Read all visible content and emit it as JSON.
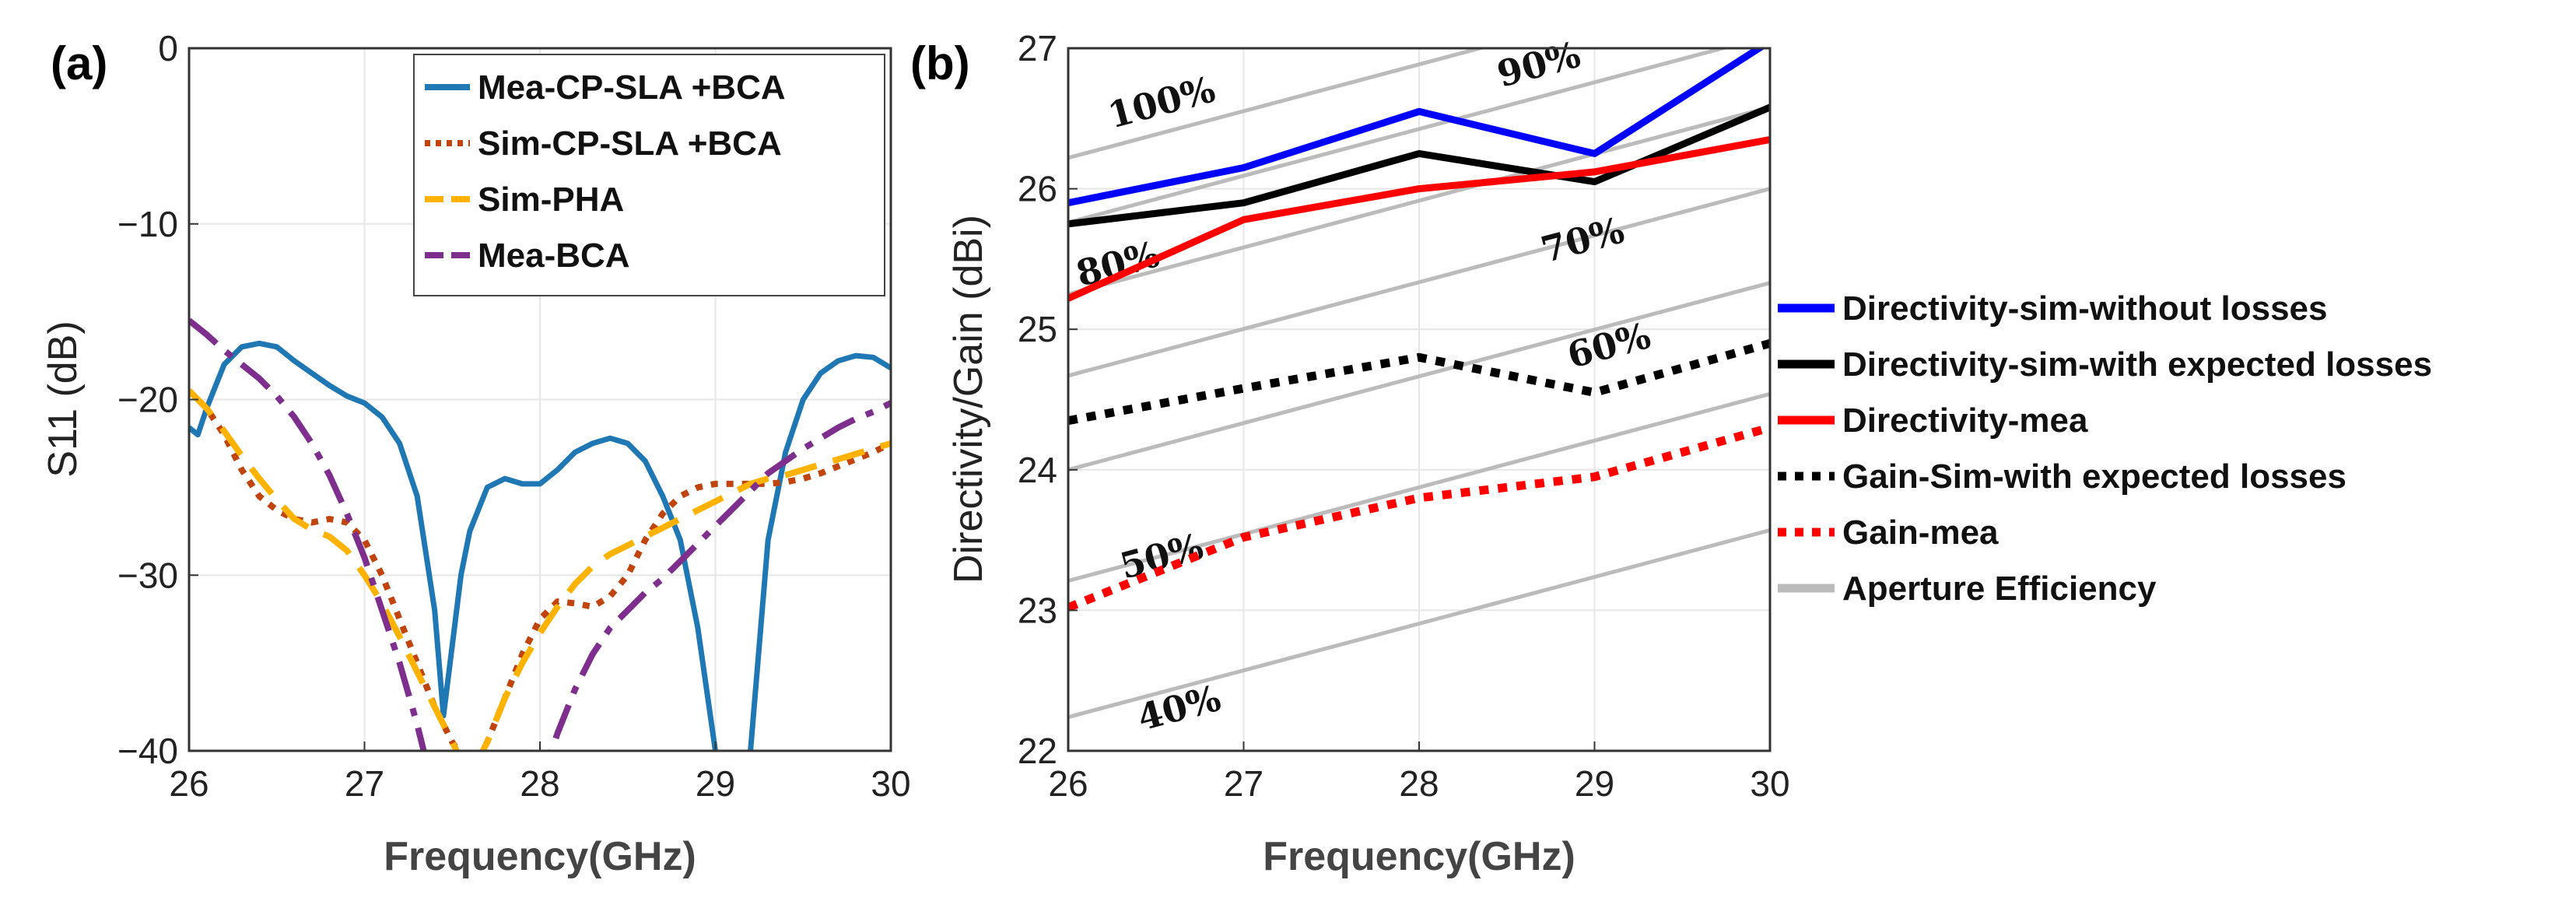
{
  "chart_data": [
    {
      "panel": "(a)",
      "type": "line",
      "xlabel": "Frequency(GHz)",
      "ylabel": "S11 (dB)",
      "xlim": [
        26,
        30
      ],
      "ylim": [
        -40,
        0
      ],
      "xticks": [
        "26",
        "27",
        "28",
        "29",
        "30"
      ],
      "yticks": [
        "−40",
        "−30",
        "−20",
        "−10",
        "0"
      ],
      "grid": true,
      "legend_position": "top-right",
      "series": [
        {
          "name": "Mea-CP-SLA +BCA",
          "color": "#1f77b4",
          "dash": "solid",
          "x": [
            26.0,
            26.05,
            26.1,
            26.2,
            26.3,
            26.4,
            26.5,
            26.6,
            26.7,
            26.8,
            26.9,
            27.0,
            27.1,
            27.2,
            27.3,
            27.4,
            27.45,
            27.5,
            27.55,
            27.6,
            27.7,
            27.8,
            27.9,
            28.0,
            28.1,
            28.2,
            28.3,
            28.4,
            28.5,
            28.6,
            28.7,
            28.8,
            28.9,
            29.0,
            29.05,
            29.2,
            29.25,
            29.3,
            29.4,
            29.5,
            29.6,
            29.7,
            29.8,
            29.9,
            30.0
          ],
          "y": [
            -21.6,
            -22.0,
            -20.5,
            -18.0,
            -17.0,
            -16.8,
            -17.0,
            -17.8,
            -18.5,
            -19.2,
            -19.8,
            -20.2,
            -21.0,
            -22.5,
            -25.5,
            -32.0,
            -38.0,
            -34.0,
            -30.0,
            -27.5,
            -25.0,
            -24.5,
            -24.8,
            -24.8,
            -24.0,
            -23.0,
            -22.5,
            -22.2,
            -22.5,
            -23.5,
            -25.5,
            -28.0,
            -33.0,
            -40.0,
            -43.0,
            -40.0,
            -34.0,
            -28.0,
            -23.0,
            -20.0,
            -18.5,
            -17.8,
            -17.5,
            -17.6,
            -18.2
          ]
        },
        {
          "name": "Sim-CP-SLA +BCA",
          "color": "#c1440e",
          "dash": "dot",
          "x": [
            26.0,
            26.1,
            26.2,
            26.3,
            26.4,
            26.5,
            26.6,
            26.7,
            26.8,
            26.9,
            27.0,
            27.1,
            27.2,
            27.3,
            27.4,
            27.5,
            27.6,
            27.7,
            27.8,
            27.9,
            28.0,
            28.1,
            28.2,
            28.3,
            28.4,
            28.5,
            28.6,
            28.7,
            28.8,
            28.9,
            29.0,
            29.1,
            29.2,
            29.3,
            29.4,
            29.5,
            29.6,
            29.7,
            29.8,
            29.9,
            30.0
          ],
          "y": [
            -19.5,
            -20.5,
            -22.0,
            -24.0,
            -25.5,
            -26.3,
            -26.8,
            -27.0,
            -26.8,
            -27.0,
            -28.0,
            -30.0,
            -32.5,
            -35.0,
            -37.5,
            -39.5,
            -41.0,
            -39.5,
            -37.0,
            -34.5,
            -32.5,
            -31.5,
            -31.6,
            -31.8,
            -31.2,
            -30.0,
            -28.0,
            -26.5,
            -25.5,
            -25.0,
            -24.8,
            -24.8,
            -24.8,
            -24.8,
            -24.7,
            -24.5,
            -24.2,
            -23.8,
            -23.4,
            -23.0,
            -22.5
          ]
        },
        {
          "name": "Sim-PHA",
          "color": "#ffb300",
          "dash": "dash",
          "x": [
            26.0,
            26.1,
            26.2,
            26.3,
            26.4,
            26.5,
            26.6,
            26.7,
            26.8,
            26.9,
            27.0,
            27.1,
            27.2,
            27.3,
            27.4,
            27.5,
            27.6,
            27.7,
            27.8,
            27.9,
            28.0,
            28.1,
            28.2,
            28.3,
            28.4,
            28.5,
            28.6,
            28.7,
            28.8,
            28.9,
            29.0,
            29.1,
            29.2,
            29.3,
            29.4,
            29.5,
            29.6,
            29.7,
            29.8,
            29.9,
            30.0
          ],
          "y": [
            -19.5,
            -20.5,
            -21.8,
            -23.2,
            -24.5,
            -25.7,
            -26.8,
            -27.4,
            -27.8,
            -28.6,
            -30.0,
            -31.6,
            -33.5,
            -35.5,
            -37.5,
            -39.5,
            -41.5,
            -39.5,
            -37.0,
            -35.0,
            -33.3,
            -31.8,
            -30.5,
            -29.5,
            -28.8,
            -28.3,
            -27.8,
            -27.3,
            -26.8,
            -26.3,
            -25.8,
            -25.3,
            -24.8,
            -24.5,
            -24.3,
            -24.0,
            -23.7,
            -23.4,
            -23.1,
            -22.8,
            -22.5
          ]
        },
        {
          "name": "Mea-BCA",
          "color": "#7e2f8e",
          "dash": "dashdot",
          "x": [
            26.0,
            26.1,
            26.2,
            26.3,
            26.4,
            26.5,
            26.6,
            26.7,
            26.8,
            26.9,
            27.0,
            27.1,
            27.2,
            27.3,
            27.35,
            27.4,
            27.45,
            28.0,
            28.05,
            28.1,
            28.2,
            28.3,
            28.4,
            28.5,
            28.6,
            28.7,
            28.8,
            28.9,
            29.0,
            29.1,
            29.2,
            29.3,
            29.4,
            29.5,
            29.6,
            29.7,
            29.8,
            29.9,
            30.0
          ],
          "y": [
            -15.5,
            -16.3,
            -17.2,
            -18.0,
            -18.8,
            -19.8,
            -21.0,
            -22.5,
            -24.3,
            -26.5,
            -29.0,
            -32.0,
            -35.0,
            -38.5,
            -40.5,
            -43.0,
            -45.0,
            -42.0,
            -40.5,
            -39.0,
            -36.5,
            -34.5,
            -33.0,
            -32.0,
            -31.0,
            -30.2,
            -29.2,
            -28.2,
            -27.2,
            -26.2,
            -25.2,
            -24.2,
            -23.5,
            -22.8,
            -22.2,
            -21.6,
            -21.1,
            -20.7,
            -20.2
          ]
        }
      ]
    },
    {
      "panel": "(b)",
      "type": "line",
      "xlabel": "Frequency(GHz)",
      "ylabel": "Directivity/Gain (dBi)",
      "xlim": [
        26,
        30
      ],
      "ylim": [
        22,
        27
      ],
      "xticks": [
        "26",
        "27",
        "28",
        "29",
        "30"
      ],
      "yticks": [
        "22",
        "23",
        "24",
        "25",
        "26",
        "27"
      ],
      "grid": true,
      "legend_position": "outside-right",
      "series": [
        {
          "name": "Directivity-sim-without losses",
          "color": "#0000ff",
          "dash": "solid",
          "x": [
            26,
            27,
            28,
            29,
            30
          ],
          "y": [
            25.9,
            26.15,
            26.55,
            26.25,
            27.05
          ]
        },
        {
          "name": "Directivity-sim-with expected losses",
          "color": "#000000",
          "dash": "solid",
          "x": [
            26,
            27,
            28,
            29,
            30
          ],
          "y": [
            25.75,
            25.9,
            26.25,
            26.05,
            26.58
          ]
        },
        {
          "name": "Directivity-mea",
          "color": "#ff0000",
          "dash": "solid",
          "x": [
            26,
            27,
            28,
            29,
            30
          ],
          "y": [
            25.22,
            25.78,
            26.0,
            26.12,
            26.35
          ]
        },
        {
          "name": "Gain-Sim-with expected losses",
          "color": "#000000",
          "dash": "dot",
          "x": [
            26,
            27,
            28,
            29,
            30
          ],
          "y": [
            24.35,
            24.58,
            24.8,
            24.55,
            24.9
          ]
        },
        {
          "name": "Gain-mea",
          "color": "#ff0000",
          "dash": "dot",
          "x": [
            26,
            27,
            28,
            29,
            30
          ],
          "y": [
            23.02,
            23.52,
            23.8,
            23.95,
            24.3
          ]
        },
        {
          "name": "Aperture Efficiency",
          "color": "#bbbbbb",
          "dash": "solid",
          "x": [],
          "y": []
        }
      ],
      "efficiency_lines": {
        "color": "#bbbbbb",
        "lines": [
          {
            "label": "100%",
            "x": [
              26,
              30
            ],
            "y": [
              26.22,
              27.55
            ]
          },
          {
            "label": "90%",
            "x": [
              26,
              30
            ],
            "y": [
              25.76,
              27.09
            ]
          },
          {
            "label": "80%",
            "x": [
              26,
              30
            ],
            "y": [
              25.25,
              26.58
            ]
          },
          {
            "label": "70%",
            "x": [
              26,
              30
            ],
            "y": [
              24.67,
              26.0
            ]
          },
          {
            "label": "60%",
            "x": [
              26,
              30
            ],
            "y": [
              24.0,
              25.33
            ]
          },
          {
            "label": "50%",
            "x": [
              26,
              30
            ],
            "y": [
              23.21,
              24.54
            ]
          },
          {
            "label": "40%",
            "x": [
              26,
              30
            ],
            "y": [
              22.24,
              23.57
            ]
          }
        ],
        "annotations": [
          {
            "text": "100%",
            "x": 26.55,
            "y": 26.53
          },
          {
            "text": "90%",
            "x": 28.7,
            "y": 26.8
          },
          {
            "text": "80%",
            "x": 26.3,
            "y": 25.38
          },
          {
            "text": "70%",
            "x": 28.95,
            "y": 25.55
          },
          {
            "text": "60%",
            "x": 29.1,
            "y": 24.8
          },
          {
            "text": "50%",
            "x": 26.55,
            "y": 23.3
          },
          {
            "text": "40%",
            "x": 26.65,
            "y": 22.22
          }
        ]
      }
    }
  ]
}
